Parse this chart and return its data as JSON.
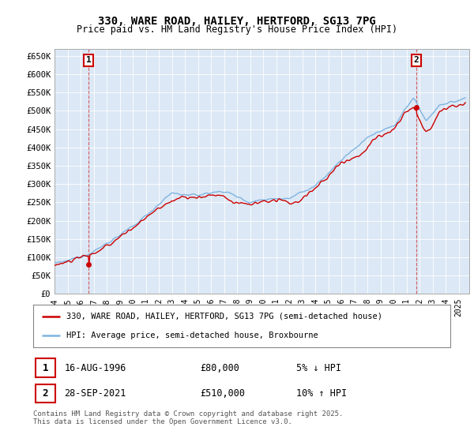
{
  "title": "330, WARE ROAD, HAILEY, HERTFORD, SG13 7PG",
  "subtitle": "Price paid vs. HM Land Registry's House Price Index (HPI)",
  "ylim": [
    0,
    670000
  ],
  "yticks": [
    0,
    50000,
    100000,
    150000,
    200000,
    250000,
    300000,
    350000,
    400000,
    450000,
    500000,
    550000,
    600000,
    650000
  ],
  "ytick_labels": [
    "£0",
    "£50K",
    "£100K",
    "£150K",
    "£200K",
    "£250K",
    "£300K",
    "£350K",
    "£400K",
    "£450K",
    "£500K",
    "£550K",
    "£600K",
    "£650K"
  ],
  "hpi_color": "#7eb4e0",
  "price_color": "#cc0000",
  "plot_bg_color": "#dce8f5",
  "background_color": "#ffffff",
  "grid_color": "#ffffff",
  "annotation1_date": "16-AUG-1996",
  "annotation1_price_str": "£80,000",
  "annotation1_pct": "5% ↓ HPI",
  "annotation1_year": 1996.62,
  "annotation1_value": 80000,
  "annotation2_date": "28-SEP-2021",
  "annotation2_price_str": "£510,000",
  "annotation2_pct": "10% ↑ HPI",
  "annotation2_year": 2021.74,
  "annotation2_value": 510000,
  "legend_line1": "330, WARE ROAD, HAILEY, HERTFORD, SG13 7PG (semi-detached house)",
  "legend_line2": "HPI: Average price, semi-detached house, Broxbourne",
  "footnote": "Contains HM Land Registry data © Crown copyright and database right 2025.\nThis data is licensed under the Open Government Licence v3.0."
}
